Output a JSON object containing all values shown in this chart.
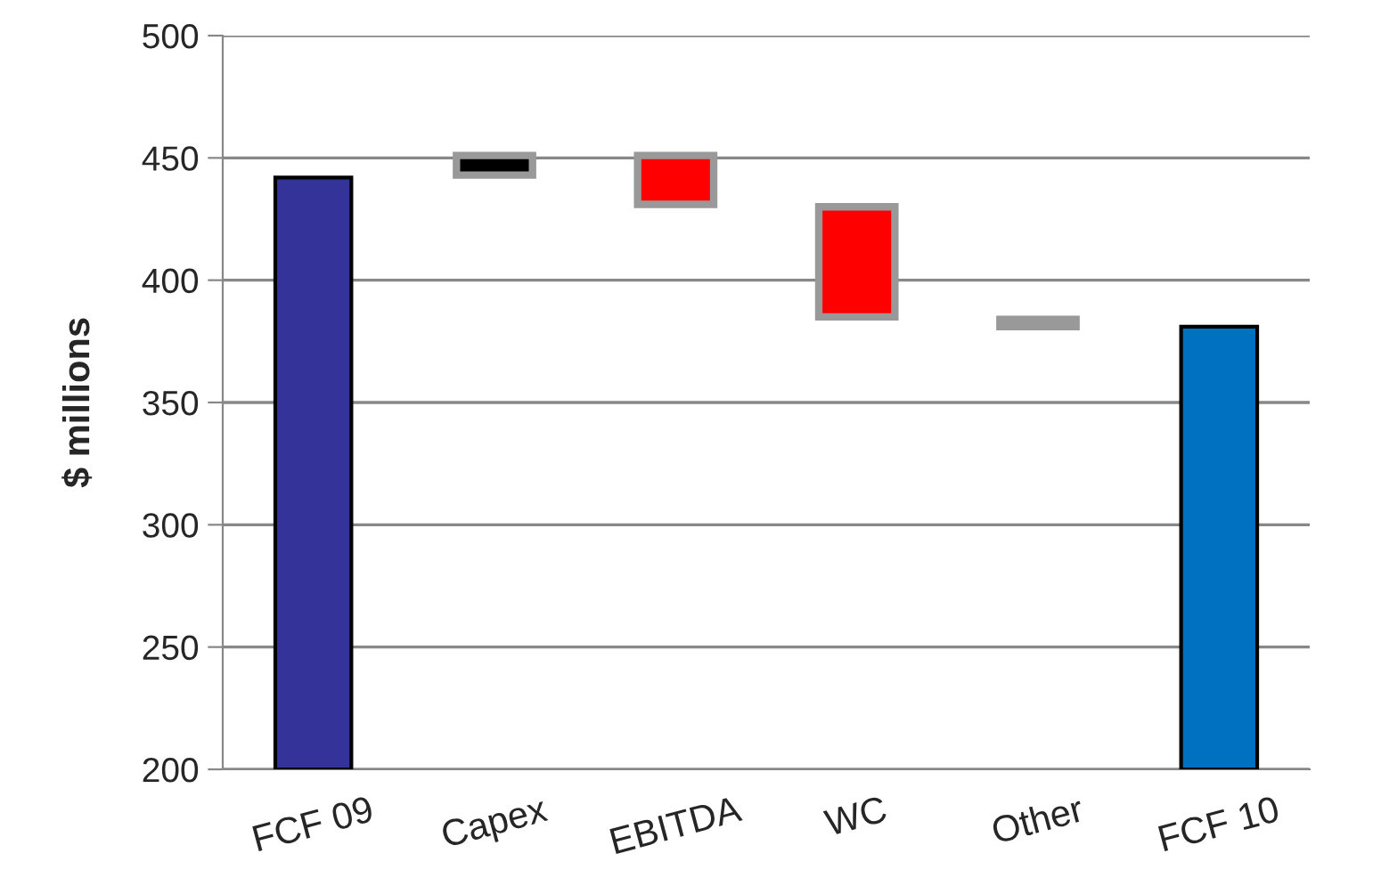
{
  "chart_data": {
    "type": "bar",
    "ylabel": "$ millions",
    "categories": [
      "FCF 09",
      "Capex",
      "EBITDA",
      "WC",
      "Other",
      "FCF 10"
    ],
    "values": [
      242,
      8,
      20,
      45,
      3,
      181
    ],
    "base": [
      200,
      443,
      431,
      385,
      381,
      200
    ],
    "colors": [
      "#333399",
      "#000000",
      "#ff0000",
      "#ff0000",
      "#999999",
      "#0070c0"
    ],
    "ylim": [
      200,
      500
    ],
    "yticks": [
      200,
      250,
      300,
      350,
      400,
      450,
      500
    ],
    "grid": "y"
  }
}
